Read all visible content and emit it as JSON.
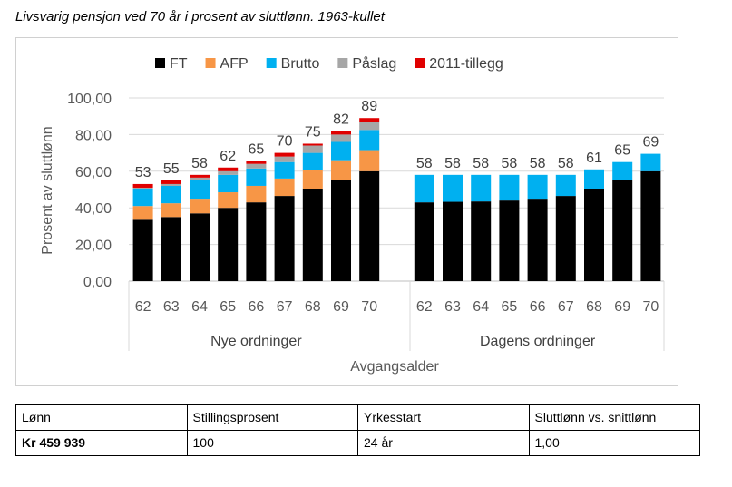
{
  "title": "Livsvarig pensjon ved 70 år i prosent av sluttlønn. 1963-kullet",
  "chart_data": {
    "type": "bar",
    "stacked": true,
    "title": "Livsvarig pensjon ved 70 år i prosent av sluttlønn. 1963-kullet",
    "ylabel": "Prosent av sluttlønn",
    "xlabel": "Avgangsalder",
    "ylim": [
      0,
      100
    ],
    "yticks": [
      "0,00",
      "20,00",
      "40,00",
      "60,00",
      "80,00",
      "100,00"
    ],
    "legend_position": "top",
    "groups": [
      {
        "name": "Nye ordninger",
        "categories": [
          "62",
          "63",
          "64",
          "65",
          "66",
          "67",
          "68",
          "69",
          "70"
        ],
        "totals": [
          "53",
          "55",
          "58",
          "62",
          "65",
          "70",
          "75",
          "82",
          "89"
        ]
      },
      {
        "name": "Dagens ordninger",
        "categories": [
          "62",
          "63",
          "64",
          "65",
          "66",
          "67",
          "68",
          "69",
          "70"
        ],
        "totals": [
          "58",
          "58",
          "58",
          "58",
          "58",
          "58",
          "61",
          "65",
          "69"
        ]
      }
    ],
    "series": [
      {
        "name": "FT",
        "color": "#000000",
        "values": [
          33.5,
          35,
          37,
          40,
          43,
          46.5,
          50.5,
          55,
          60,
          43,
          43.3,
          43.5,
          44,
          45,
          46.5,
          50.5,
          55,
          60
        ]
      },
      {
        "name": "AFP",
        "color": "#F79646",
        "values": [
          7.5,
          7.5,
          8,
          8.5,
          9,
          9.5,
          10,
          11,
          11.5,
          0,
          0,
          0,
          0,
          0,
          0,
          0,
          0,
          0
        ]
      },
      {
        "name": "Brutto",
        "color": "#00B0F0",
        "values": [
          9.5,
          9.5,
          10,
          9.5,
          9.5,
          9,
          9.5,
          10,
          11,
          15,
          14.7,
          14.5,
          14,
          13,
          11.5,
          10.5,
          10,
          9.5
        ]
      },
      {
        "name": "Påslag",
        "color": "#A6A6A6",
        "values": [
          0.5,
          1,
          1.5,
          2,
          2.5,
          3,
          4,
          4,
          4.5,
          0,
          0,
          0,
          0,
          0,
          0,
          0,
          0,
          0
        ]
      },
      {
        "name": "2011-tillegg",
        "color": "#E00000",
        "values": [
          2,
          2,
          1.5,
          2,
          1.5,
          2,
          1,
          2,
          2,
          0,
          0,
          0,
          0,
          0,
          0,
          0,
          0,
          0
        ]
      }
    ]
  },
  "table": {
    "headers": [
      "Lønn",
      "Stillingsprosent",
      "Yrkesstart",
      "Sluttlønn vs. snittlønn"
    ],
    "values": [
      "Kr 459 939",
      "100",
      "24 år",
      "1,00"
    ]
  }
}
